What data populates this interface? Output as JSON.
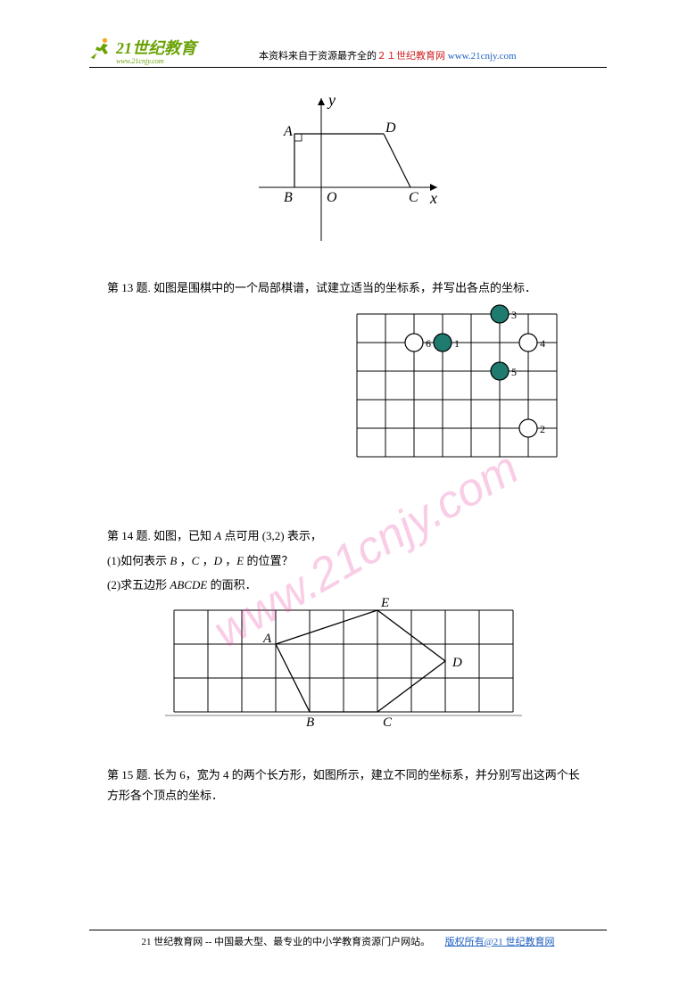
{
  "header": {
    "logo_main": "21世纪教育",
    "logo_sub": "www.21cnjy.com",
    "desc_black": "本资料来自于资源最齐全的",
    "desc_red": "２１世纪教育网",
    "desc_link": "www.21cnjy.com",
    "logo_color": "#6aa206",
    "red_color": "#d02020",
    "link_color": "#2060c0"
  },
  "fig1": {
    "labels": {
      "A": "A",
      "B": "B",
      "O": "O",
      "C": "C",
      "D": "D",
      "x": "x",
      "y": "y"
    },
    "axis_color": "#000000"
  },
  "q13": {
    "text": "第 13 题.  如图是围棋中的一个局部棋谱，试建立适当的坐标系，并写出各点的坐标．",
    "grid": {
      "rows": 5,
      "cols": 7,
      "cell": 32
    },
    "pieces": [
      {
        "col": 5,
        "row": 0,
        "color": "black",
        "label": "3"
      },
      {
        "col": 2,
        "row": 1,
        "color": "white",
        "label": "6"
      },
      {
        "col": 3,
        "row": 1,
        "color": "black",
        "label": "1"
      },
      {
        "col": 6,
        "row": 1,
        "color": "white",
        "label": "4"
      },
      {
        "col": 5,
        "row": 2,
        "color": "black",
        "label": "5"
      },
      {
        "col": 6,
        "row": 4,
        "color": "white",
        "label": "2"
      }
    ],
    "black_fill": "#1f7a6f",
    "white_fill": "#ffffff",
    "stroke": "#000000"
  },
  "q14": {
    "line1": "第 14 题.  如图，已知 A 点可用 (3,2) 表示，",
    "line2": "(1)如何表示 B ，C ，D ，E 的位置？",
    "line3": "(2)求五边形 ABCDE 的面积．",
    "grid": {
      "rows": 3,
      "cols": 10,
      "cell": 38
    },
    "points": {
      "A": {
        "x": 3,
        "y": 1,
        "label": "A"
      },
      "B": {
        "x": 4,
        "y": 3,
        "label": "B"
      },
      "C": {
        "x": 6,
        "y": 3,
        "label": "C"
      },
      "D": {
        "x": 8,
        "y": 1.5,
        "label": "D"
      },
      "E": {
        "x": 6,
        "y": 0,
        "label": "E"
      }
    }
  },
  "q15": {
    "text": "第 15 题.  长为 6，宽为 4 的两个长方形，如图所示，建立不同的坐标系，并分别写出这两个长方形各个顶点的坐标．"
  },
  "watermark": {
    "text": "www.21cnjy.com",
    "color": "#e83ea0"
  },
  "footer": {
    "text_left": "21 世纪教育网 -- 中国最大型、最专业的中小学教育资源门户网站。",
    "text_right": "版权所有@21 世纪教育网"
  }
}
